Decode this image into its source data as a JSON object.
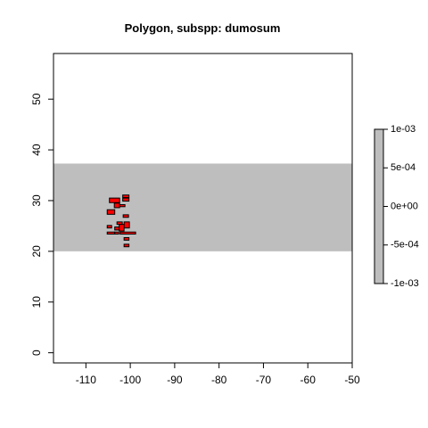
{
  "chart_data": {
    "type": "heatmap",
    "title": "Polygon, subspp: dumosum",
    "xlabel": "",
    "ylabel": "",
    "xlim": [
      -117.3,
      -50
    ],
    "ylim": [
      -2,
      59
    ],
    "x_ticks": [
      -110,
      -100,
      -90,
      -80,
      -70,
      -60,
      -50
    ],
    "y_ticks": [
      0,
      10,
      20,
      30,
      40,
      50
    ],
    "grid": false,
    "band": {
      "y_from": 20,
      "y_to": 37.3,
      "color": "#bebebe"
    },
    "cells": [
      {
        "x0": -101.7,
        "x1": -100.3,
        "y0": 30.6,
        "y1": 31.1
      },
      {
        "x0": -104.7,
        "x1": -102.4,
        "y0": 29.6,
        "y1": 30.5
      },
      {
        "x0": -101.7,
        "x1": -100.3,
        "y0": 29.9,
        "y1": 30.5
      },
      {
        "x0": -103.6,
        "x1": -102.4,
        "y0": 28.6,
        "y1": 29.5
      },
      {
        "x0": -102.4,
        "x1": -101.2,
        "y0": 28.8,
        "y1": 29.2
      },
      {
        "x0": -105.2,
        "x1": -103.5,
        "y0": 27.3,
        "y1": 28.2
      },
      {
        "x0": -101.6,
        "x1": -100.4,
        "y0": 26.7,
        "y1": 27.2
      },
      {
        "x0": -103.0,
        "x1": -101.8,
        "y0": 25.3,
        "y1": 25.8
      },
      {
        "x0": -101.4,
        "x1": -100.2,
        "y0": 24.6,
        "y1": 25.8
      },
      {
        "x0": -102.5,
        "x1": -101.4,
        "y0": 24.0,
        "y1": 25.3
      },
      {
        "x0": -105.2,
        "x1": -104.2,
        "y0": 24.6,
        "y1": 25.1
      },
      {
        "x0": -103.5,
        "x1": -102.5,
        "y0": 24.2,
        "y1": 24.8
      },
      {
        "x0": -105.2,
        "x1": -103.5,
        "y0": 23.4,
        "y1": 23.8
      },
      {
        "x0": -103.5,
        "x1": -102.6,
        "y0": 23.4,
        "y1": 23.8
      },
      {
        "x0": -102.3,
        "x1": -98.8,
        "y0": 23.4,
        "y1": 23.8
      },
      {
        "x0": -101.4,
        "x1": -100.3,
        "y0": 22.2,
        "y1": 22.7
      },
      {
        "x0": -101.4,
        "x1": -100.3,
        "y0": 20.9,
        "y1": 21.4
      }
    ],
    "cell_color": "#ff0000",
    "cell_border": "#000000",
    "legend": {
      "position": "right",
      "labels": [
        "1e-03",
        "5e-04",
        "0e+00",
        "-5e-04",
        "-1e-03"
      ],
      "values": [
        0.001,
        0.0005,
        0,
        -0.0005,
        -0.001
      ],
      "range": [
        -0.001,
        0.001
      ],
      "color": "#bebebe"
    }
  }
}
